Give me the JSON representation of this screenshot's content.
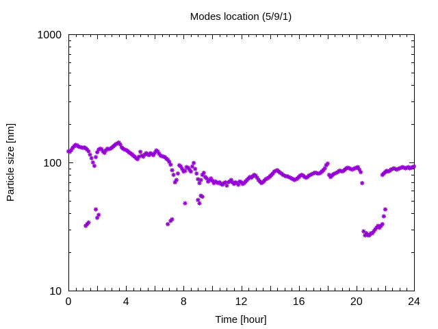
{
  "chart_data": {
    "type": "scatter",
    "title": "Modes location (5/9/1)",
    "xlabel": "Time [hour]",
    "ylabel": "Particle size [nm]",
    "xlim": [
      0,
      24
    ],
    "ylim": [
      10,
      1000
    ],
    "y_scale": "log",
    "x_ticks": [
      0,
      4,
      8,
      12,
      16,
      20,
      24
    ],
    "y_ticks": [
      10,
      100,
      1000
    ],
    "marker": "asterisk",
    "color": "#9400d3",
    "grid": false,
    "legend": "none",
    "series": [
      {
        "values": [
          [
            0.0,
            122
          ],
          [
            0.1,
            121
          ],
          [
            0.2,
            125
          ],
          [
            0.3,
            130
          ],
          [
            0.4,
            134
          ],
          [
            0.5,
            137
          ],
          [
            0.6,
            136
          ],
          [
            0.7,
            133
          ],
          [
            0.8,
            132
          ],
          [
            0.9,
            131
          ],
          [
            1.0,
            130
          ],
          [
            1.1,
            131
          ],
          [
            1.2,
            129
          ],
          [
            1.3,
            126
          ],
          [
            1.4,
            122
          ],
          [
            1.5,
            115
          ],
          [
            1.6,
            108
          ],
          [
            1.7,
            100
          ],
          [
            1.8,
            94
          ],
          [
            1.9,
            110
          ],
          [
            2.0,
            120
          ],
          [
            2.1,
            126
          ],
          [
            2.2,
            128
          ],
          [
            2.3,
            127
          ],
          [
            2.4,
            122
          ],
          [
            2.5,
            119
          ],
          [
            2.6,
            124
          ],
          [
            2.7,
            128
          ],
          [
            2.8,
            127
          ],
          [
            2.9,
            128
          ],
          [
            3.0,
            130
          ],
          [
            3.1,
            133
          ],
          [
            3.2,
            136
          ],
          [
            3.3,
            139
          ],
          [
            3.4,
            141
          ],
          [
            3.5,
            143
          ],
          [
            3.6,
            138
          ],
          [
            3.7,
            131
          ],
          [
            3.8,
            128
          ],
          [
            3.9,
            126
          ],
          [
            4.0,
            125
          ],
          [
            4.1,
            123
          ],
          [
            4.2,
            120
          ],
          [
            4.3,
            118
          ],
          [
            4.4,
            116
          ],
          [
            4.5,
            113
          ],
          [
            4.6,
            111
          ],
          [
            4.7,
            108
          ],
          [
            4.8,
            106
          ],
          [
            4.9,
            111
          ],
          [
            5.0,
            121
          ],
          [
            5.1,
            113
          ],
          [
            5.2,
            111
          ],
          [
            5.3,
            115
          ],
          [
            5.4,
            118
          ],
          [
            5.5,
            116
          ],
          [
            5.6,
            114
          ],
          [
            5.7,
            118
          ],
          [
            5.8,
            116
          ],
          [
            5.9,
            114
          ],
          [
            6.0,
            119
          ],
          [
            6.1,
            124
          ],
          [
            6.2,
            122
          ],
          [
            6.3,
            117
          ],
          [
            6.4,
            113
          ],
          [
            6.5,
            112
          ],
          [
            6.6,
            111
          ],
          [
            6.7,
            110
          ],
          [
            6.8,
            107
          ],
          [
            6.9,
            105
          ],
          [
            7.0,
            101
          ],
          [
            7.1,
            96
          ],
          [
            7.2,
            87
          ],
          [
            7.3,
            80
          ],
          [
            7.4,
            70
          ],
          [
            7.5,
            73
          ],
          [
            7.6,
            82
          ],
          [
            7.7,
            95
          ],
          [
            7.8,
            93
          ],
          [
            7.9,
            89
          ],
          [
            8.0,
            85
          ],
          [
            8.1,
            86
          ],
          [
            8.2,
            92
          ],
          [
            8.3,
            91
          ],
          [
            8.4,
            88
          ],
          [
            8.5,
            85
          ],
          [
            8.6,
            93
          ],
          [
            8.7,
            99
          ],
          [
            8.8,
            89
          ],
          [
            8.9,
            82
          ],
          [
            9.0,
            74
          ],
          [
            9.1,
            69
          ],
          [
            9.2,
            73
          ],
          [
            9.3,
            80
          ],
          [
            9.4,
            83
          ],
          [
            9.5,
            77
          ],
          [
            9.6,
            75
          ],
          [
            9.7,
            71
          ],
          [
            9.8,
            73
          ],
          [
            9.9,
            75
          ],
          [
            10.0,
            72
          ],
          [
            10.1,
            69
          ],
          [
            10.2,
            71
          ],
          [
            10.3,
            70
          ],
          [
            10.4,
            69
          ],
          [
            10.5,
            70
          ],
          [
            10.6,
            68
          ],
          [
            10.7,
            67
          ],
          [
            10.8,
            69
          ],
          [
            10.9,
            70
          ],
          [
            11.0,
            66
          ],
          [
            11.1,
            70
          ],
          [
            11.2,
            71
          ],
          [
            11.3,
            73
          ],
          [
            11.4,
            70
          ],
          [
            11.5,
            68
          ],
          [
            11.6,
            70
          ],
          [
            11.7,
            69
          ],
          [
            11.8,
            67
          ],
          [
            11.9,
            71
          ],
          [
            12.0,
            70
          ],
          [
            12.1,
            68
          ],
          [
            12.2,
            69
          ],
          [
            12.3,
            71
          ],
          [
            12.4,
            73
          ],
          [
            12.5,
            75
          ],
          [
            12.6,
            77
          ],
          [
            12.7,
            76
          ],
          [
            12.8,
            78
          ],
          [
            12.9,
            80
          ],
          [
            13.0,
            79
          ],
          [
            13.1,
            76
          ],
          [
            13.2,
            73
          ],
          [
            13.3,
            71
          ],
          [
            13.4,
            69
          ],
          [
            13.5,
            70
          ],
          [
            13.6,
            72
          ],
          [
            13.7,
            74
          ],
          [
            13.8,
            75
          ],
          [
            13.9,
            76
          ],
          [
            14.0,
            78
          ],
          [
            14.1,
            80
          ],
          [
            14.2,
            82
          ],
          [
            14.3,
            85
          ],
          [
            14.4,
            86
          ],
          [
            14.5,
            87
          ],
          [
            14.6,
            85
          ],
          [
            14.7,
            83
          ],
          [
            14.8,
            82
          ],
          [
            14.9,
            80
          ],
          [
            15.0,
            79
          ],
          [
            15.1,
            78
          ],
          [
            15.2,
            78
          ],
          [
            15.3,
            77
          ],
          [
            15.4,
            76
          ],
          [
            15.5,
            75
          ],
          [
            15.6,
            74
          ],
          [
            15.7,
            73
          ],
          [
            15.8,
            74
          ],
          [
            15.9,
            75
          ],
          [
            16.0,
            77
          ],
          [
            16.1,
            79
          ],
          [
            16.2,
            80
          ],
          [
            16.3,
            79
          ],
          [
            16.4,
            77
          ],
          [
            16.5,
            76
          ],
          [
            16.6,
            77
          ],
          [
            16.7,
            79
          ],
          [
            16.8,
            80
          ],
          [
            16.9,
            81
          ],
          [
            17.0,
            82
          ],
          [
            17.1,
            83
          ],
          [
            17.2,
            83
          ],
          [
            17.3,
            82
          ],
          [
            17.4,
            82
          ],
          [
            17.5,
            83
          ],
          [
            17.6,
            85
          ],
          [
            17.7,
            87
          ],
          [
            17.8,
            90
          ],
          [
            17.9,
            95
          ],
          [
            18.0,
            98
          ],
          [
            18.1,
            80
          ],
          [
            18.2,
            77
          ],
          [
            18.3,
            79
          ],
          [
            18.4,
            81
          ],
          [
            18.5,
            82
          ],
          [
            18.6,
            83
          ],
          [
            18.7,
            84
          ],
          [
            18.8,
            86
          ],
          [
            18.9,
            86
          ],
          [
            19.0,
            85
          ],
          [
            19.1,
            86
          ],
          [
            19.2,
            88
          ],
          [
            19.3,
            90
          ],
          [
            19.4,
            91
          ],
          [
            19.5,
            90
          ],
          [
            19.6,
            89
          ],
          [
            19.7,
            88
          ],
          [
            19.8,
            89
          ],
          [
            19.9,
            90
          ],
          [
            20.0,
            91
          ],
          [
            20.1,
            92
          ],
          [
            20.2,
            88
          ],
          [
            20.3,
            84
          ],
          [
            20.4,
            69
          ],
          [
            21.8,
            80
          ],
          [
            21.9,
            82
          ],
          [
            22.0,
            84
          ],
          [
            22.1,
            86
          ],
          [
            22.2,
            85
          ],
          [
            22.3,
            86
          ],
          [
            22.4,
            88
          ],
          [
            22.5,
            89
          ],
          [
            22.6,
            90
          ],
          [
            22.7,
            89
          ],
          [
            22.8,
            88
          ],
          [
            22.9,
            89
          ],
          [
            23.0,
            90
          ],
          [
            23.1,
            91
          ],
          [
            23.2,
            92
          ],
          [
            23.3,
            91
          ],
          [
            23.4,
            90
          ],
          [
            23.5,
            91
          ],
          [
            23.6,
            92
          ],
          [
            23.7,
            90
          ],
          [
            23.8,
            91
          ],
          [
            23.9,
            92
          ],
          [
            24.0,
            93
          ],
          [
            1.2,
            32
          ],
          [
            1.3,
            33
          ],
          [
            1.4,
            34
          ],
          [
            1.9,
            43
          ],
          [
            2.0,
            37
          ],
          [
            2.1,
            39
          ],
          [
            6.9,
            33
          ],
          [
            7.1,
            35
          ],
          [
            7.2,
            36
          ],
          [
            8.1,
            48
          ],
          [
            9.0,
            51
          ],
          [
            9.1,
            48
          ],
          [
            9.2,
            55
          ],
          [
            9.3,
            54
          ],
          [
            20.5,
            29
          ],
          [
            20.6,
            27
          ],
          [
            20.7,
            28
          ],
          [
            20.8,
            27
          ],
          [
            20.9,
            27
          ],
          [
            21.0,
            28
          ],
          [
            21.1,
            28
          ],
          [
            21.2,
            29
          ],
          [
            21.3,
            30
          ],
          [
            21.4,
            31
          ],
          [
            21.5,
            32
          ],
          [
            21.6,
            31
          ],
          [
            21.7,
            32
          ],
          [
            21.8,
            33
          ],
          [
            21.9,
            38
          ],
          [
            22.0,
            43
          ]
        ]
      }
    ]
  }
}
